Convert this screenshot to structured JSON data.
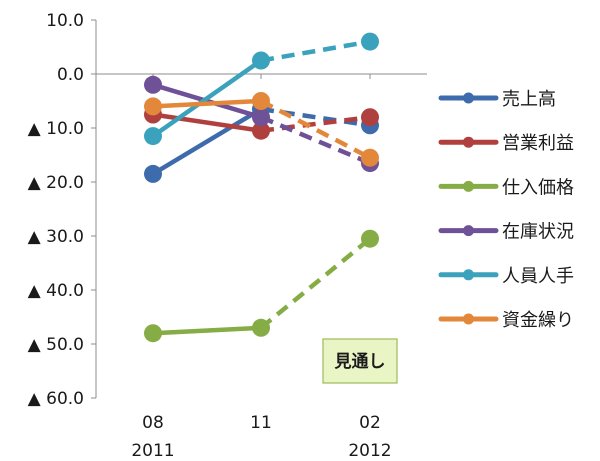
{
  "chart_data": {
    "type": "line",
    "x": [
      "08",
      "11",
      "02"
    ],
    "x_years": [
      "2011",
      "",
      "2012"
    ],
    "ylim": [
      -60,
      10
    ],
    "y_ticks": [
      10,
      0,
      -10,
      -20,
      -30,
      -40,
      -50,
      -60
    ],
    "y_tick_labels": [
      "10.0",
      "0.0",
      "▲ 10.0",
      "▲ 20.0",
      "▲ 30.0",
      "▲ 40.0",
      "▲ 50.0",
      "▲ 60.0"
    ],
    "grid": false,
    "legend_position": "right",
    "forecast_label": "見通し",
    "forecast_from_index": 1,
    "series": [
      {
        "name": "売上高",
        "color": "#3d6bab",
        "values": [
          -18.5,
          -6.5,
          -9.5
        ]
      },
      {
        "name": "営業利益",
        "color": "#b0403e",
        "values": [
          -7.5,
          -10.5,
          -8.0
        ]
      },
      {
        "name": "仕入価格",
        "color": "#86ac45",
        "values": [
          -48.0,
          -47.0,
          -30.5
        ]
      },
      {
        "name": "在庫状況",
        "color": "#6f5197",
        "values": [
          -2.0,
          -8.0,
          -16.5
        ]
      },
      {
        "name": "人員人手",
        "color": "#3ba2bd",
        "values": [
          -11.5,
          2.5,
          6.0
        ]
      },
      {
        "name": "資金繰り",
        "color": "#e3883a",
        "values": [
          -6.0,
          -5.0,
          -15.5
        ]
      }
    ]
  }
}
